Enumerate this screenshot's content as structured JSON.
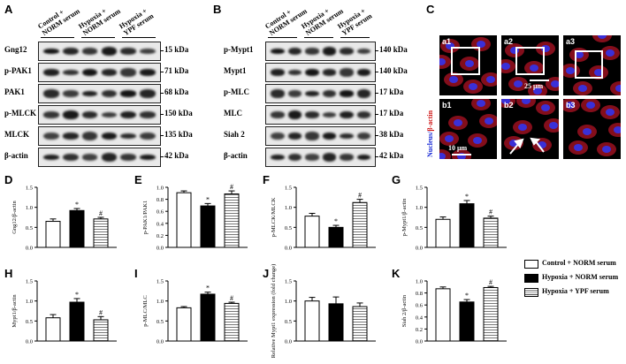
{
  "panels": {
    "A": "A",
    "B": "B",
    "C": "C",
    "D": "D",
    "E": "E",
    "F": "F",
    "G": "G",
    "H": "H",
    "I": "I",
    "J": "J",
    "K": "K"
  },
  "blot_A": {
    "conditions": [
      [
        "Control +",
        "NORM serum"
      ],
      [
        "Hypoxia +",
        "NORM serum"
      ],
      [
        "Hypoxia +",
        "YPF serum"
      ]
    ],
    "rows": [
      {
        "name": "Gng12",
        "kda": "15 kDa"
      },
      {
        "name": "p-PAK1",
        "kda": "71 kDa"
      },
      {
        "name": "PAK1",
        "kda": "68 kDa"
      },
      {
        "name": "p-MLCK",
        "kda": "150 kDa"
      },
      {
        "name": "MLCK",
        "kda": "135 kDa"
      },
      {
        "name": "β-actin",
        "kda": "42 kDa"
      }
    ]
  },
  "blot_B": {
    "conditions": [
      [
        "Control +",
        "NORM serum"
      ],
      [
        "Hypoxia +",
        "NORM serum"
      ],
      [
        "Hypoxia +",
        "YPF serum"
      ]
    ],
    "rows": [
      {
        "name": "p-Mypt1",
        "kda": "140 kDa"
      },
      {
        "name": "Mypt1",
        "kda": "140 kDa"
      },
      {
        "name": "p-MLC",
        "kda": "17 kDa"
      },
      {
        "name": "MLC",
        "kda": "17 kDa"
      },
      {
        "name": "Siah 2",
        "kda": "38 kDa"
      },
      {
        "name": "β-actin",
        "kda": "42 kDa"
      }
    ]
  },
  "micrographs": {
    "labels": [
      "a1",
      "a2",
      "a3",
      "b1",
      "b2",
      "b3"
    ],
    "scale_top": "25 μm",
    "scale_bottom": "10 μm",
    "side_label_blue": "Nucleus/",
    "side_label_red": "β-actin"
  },
  "legend": {
    "items": [
      {
        "label": "Control + NORM serum",
        "fill": "#ffffff"
      },
      {
        "label": "Hypoxia + NORM serum",
        "fill": "#000000"
      },
      {
        "label": "Hypoxia + YPF serum",
        "fill": "hatch"
      }
    ]
  },
  "chart_data": [
    {
      "panel": "D",
      "type": "bar",
      "ylabel": "Gng12/β-actin",
      "ylim": [
        0,
        1.5
      ],
      "yticks": [
        "0.0",
        "0.5",
        "1.0",
        "1.5"
      ],
      "values": [
        0.65,
        0.92,
        0.71
      ],
      "errors": [
        0.06,
        0.05,
        0.04
      ],
      "marks": [
        "",
        "*",
        "#"
      ]
    },
    {
      "panel": "E",
      "type": "bar",
      "ylabel": "p-PAK1/PAK1",
      "ylim": [
        0,
        1.0
      ],
      "yticks": [
        "0.0",
        "0.2",
        "0.4",
        "0.6",
        "0.8",
        "1.0"
      ],
      "values": [
        0.91,
        0.69,
        0.89
      ],
      "errors": [
        0.03,
        0.04,
        0.05
      ],
      "marks": [
        "",
        "*",
        "#"
      ]
    },
    {
      "panel": "F",
      "type": "bar",
      "ylabel": "p-MLCK/MLCK",
      "ylim": [
        0,
        1.5
      ],
      "yticks": [
        "0.0",
        "0.5",
        "1.0",
        "1.5"
      ],
      "values": [
        0.78,
        0.5,
        1.12
      ],
      "errors": [
        0.07,
        0.05,
        0.08
      ],
      "marks": [
        "",
        "*",
        "#"
      ]
    },
    {
      "panel": "G",
      "type": "bar",
      "ylabel": "p-Mypt1/β-actin",
      "ylim": [
        0,
        1.5
      ],
      "yticks": [
        "0.0",
        "0.5",
        "1.0",
        "1.5"
      ],
      "values": [
        0.7,
        1.09,
        0.73
      ],
      "errors": [
        0.06,
        0.08,
        0.05
      ],
      "marks": [
        "",
        "*",
        "#"
      ]
    },
    {
      "panel": "H",
      "type": "bar",
      "ylabel": "Mypt1/β-actin",
      "ylim": [
        0,
        1.5
      ],
      "yticks": [
        "0.0",
        "0.5",
        "1.0",
        "1.5"
      ],
      "values": [
        0.58,
        0.97,
        0.53
      ],
      "errors": [
        0.08,
        0.09,
        0.08
      ],
      "marks": [
        "",
        "*",
        "#"
      ]
    },
    {
      "panel": "I",
      "type": "bar",
      "ylabel": "p-MLC/MLC",
      "ylim": [
        0,
        1.5
      ],
      "yticks": [
        "0.0",
        "0.5",
        "1.0",
        "1.5"
      ],
      "values": [
        0.83,
        1.17,
        0.94
      ],
      "errors": [
        0.03,
        0.05,
        0.03
      ],
      "marks": [
        "",
        "*",
        "#"
      ]
    },
    {
      "panel": "J",
      "type": "bar",
      "ylabel": "Relative Mypt1 expression (fold change)",
      "ylim": [
        0,
        1.5
      ],
      "yticks": [
        "0.0",
        "0.5",
        "1.0",
        "1.5"
      ],
      "values": [
        1.0,
        0.93,
        0.86
      ],
      "errors": [
        0.09,
        0.17,
        0.09
      ],
      "marks": [
        "",
        "",
        ""
      ]
    },
    {
      "panel": "K",
      "type": "bar",
      "ylabel": "Siah 2/β-actin",
      "ylim": [
        0,
        1.0
      ],
      "yticks": [
        "0.0",
        "0.2",
        "0.4",
        "0.6",
        "0.8",
        "1.0"
      ],
      "values": [
        0.87,
        0.65,
        0.89
      ],
      "errors": [
        0.03,
        0.04,
        0.02
      ],
      "marks": [
        "",
        "*",
        "#"
      ]
    }
  ]
}
